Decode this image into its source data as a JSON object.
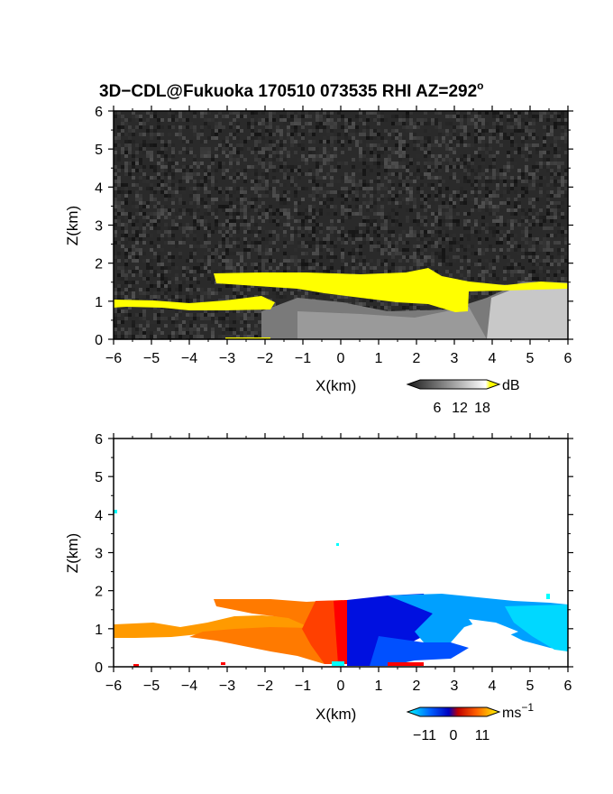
{
  "figure": {
    "title": "3D−CDL@Fukuoka 170510 073535 RHI AZ=292",
    "title_sup": "o"
  },
  "chart_data": [
    {
      "type": "heatmap",
      "panel": "reflectivity",
      "xlabel": "X(km)",
      "ylabel": "Z(km)",
      "xlim": [
        -6,
        6
      ],
      "ylim": [
        0,
        6
      ],
      "x_ticks": [
        -6,
        -5,
        -4,
        -3,
        -2,
        -1,
        0,
        1,
        2,
        3,
        4,
        5,
        6
      ],
      "y_ticks": [
        0,
        1,
        2,
        3,
        4,
        5,
        6
      ],
      "background": "noise (dark grey, low SNR)",
      "colorbar": {
        "unit": "dB",
        "ticks": [
          6,
          12,
          18
        ],
        "palette": [
          "#000000",
          "#ffffff",
          "#ffff00"
        ]
      },
      "features": [
        {
          "name": "strong return layer (yellow, >18 dB)",
          "x_range": [
            -6,
            6
          ],
          "z_range": [
            0.8,
            1.8
          ]
        },
        {
          "name": "weak return region (grey)",
          "x_range": [
            -2,
            6
          ],
          "z_range": [
            0,
            1.6
          ]
        }
      ]
    },
    {
      "type": "heatmap",
      "panel": "doppler velocity",
      "xlabel": "X(km)",
      "ylabel": "Z(km)",
      "xlim": [
        -6,
        6
      ],
      "ylim": [
        0,
        6
      ],
      "x_ticks": [
        -6,
        -5,
        -4,
        -3,
        -2,
        -1,
        0,
        1,
        2,
        3,
        4,
        5,
        6
      ],
      "y_ticks": [
        0,
        1,
        2,
        3,
        4,
        5,
        6
      ],
      "colorbar": {
        "unit": "ms",
        "unit_sup": "−1",
        "ticks": [
          "−11",
          "0",
          "11"
        ],
        "palette": [
          "#00ffff",
          "#0000ff",
          "#ff0000",
          "#ffff00"
        ]
      },
      "features": [
        {
          "name": "positive velocity (orange/red)",
          "x_range": [
            -6,
            0.2
          ],
          "z_range": [
            0.1,
            1.7
          ]
        },
        {
          "name": "negative velocity (blue/cyan)",
          "x_range": [
            0.1,
            6
          ],
          "z_range": [
            0,
            1.9
          ]
        }
      ]
    }
  ]
}
